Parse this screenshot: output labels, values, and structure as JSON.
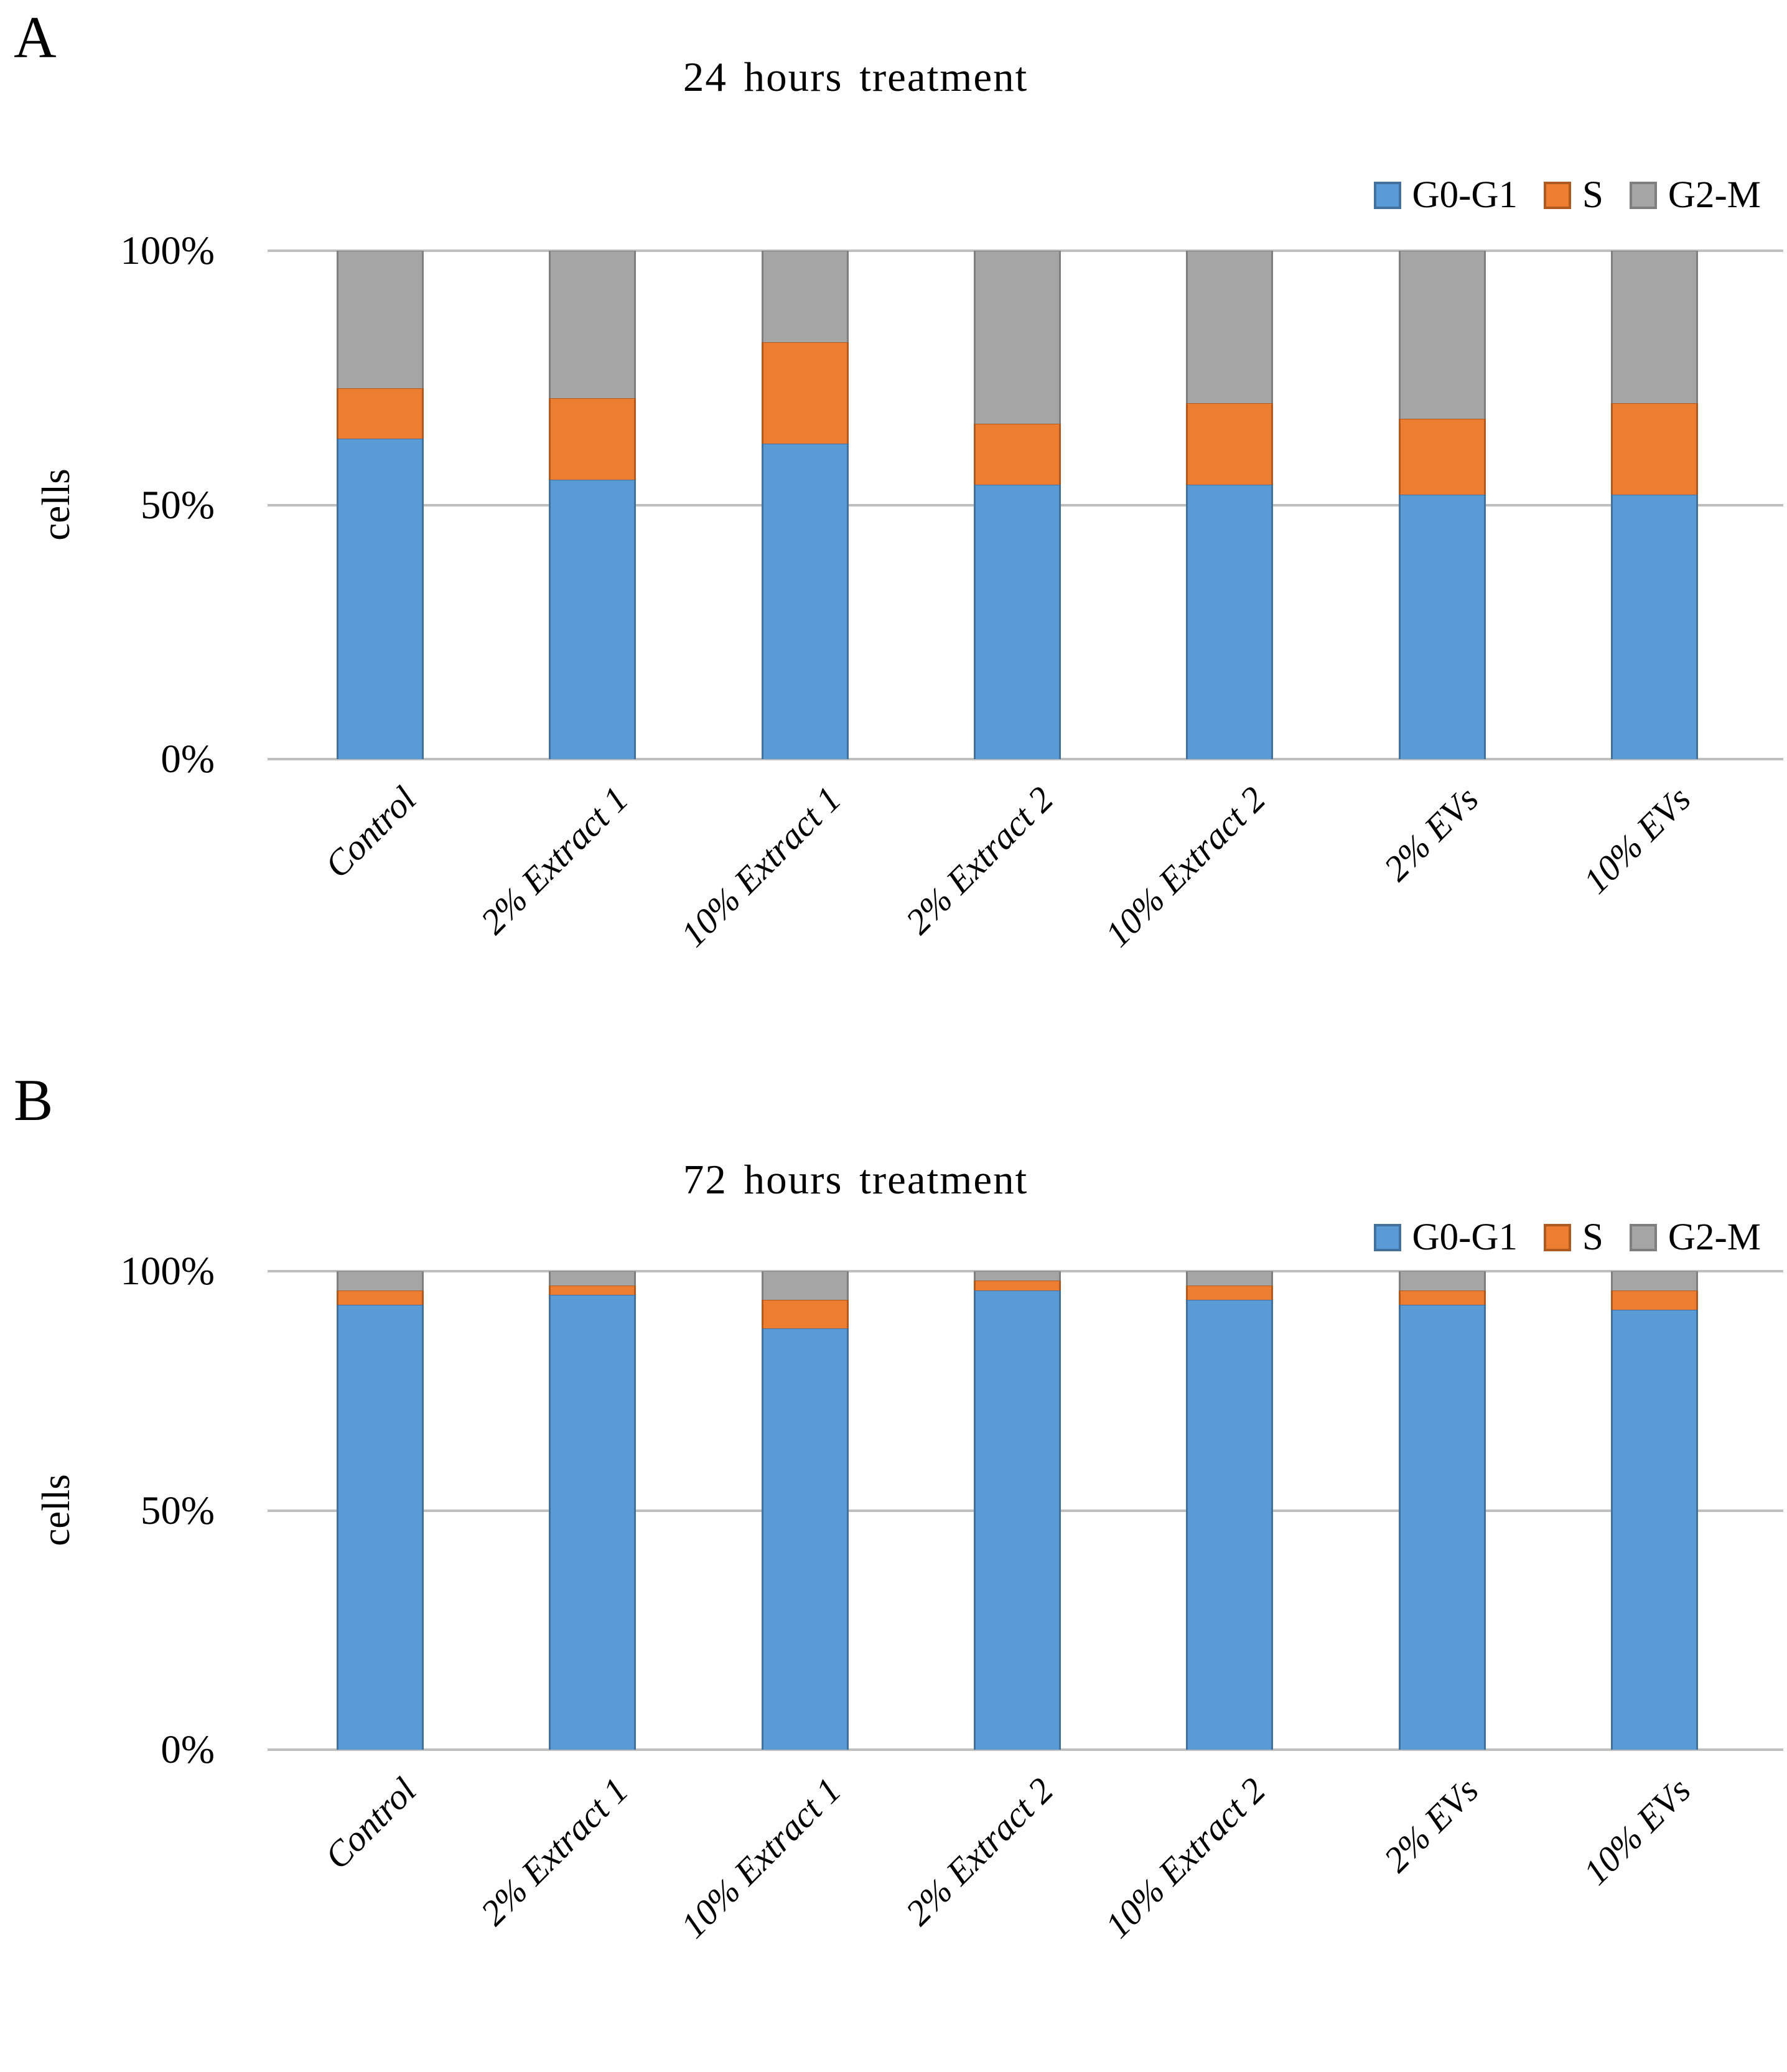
{
  "figure": {
    "background": "#ffffff",
    "text_color": "#000000",
    "gridline_color": "#BFBFBF"
  },
  "chart_data": [
    {
      "type": "bar",
      "stacked": true,
      "units": "percent",
      "panel_letter": "A",
      "title": "24 hours treatment",
      "ylabel": "cells",
      "xlabel": "",
      "ylim": [
        0,
        100
      ],
      "ytick_values": [
        0,
        50,
        100
      ],
      "ytick_labels": [
        "0%",
        "50%",
        "100%"
      ],
      "grid": true,
      "legend_position": "top-right",
      "legend_entries": [
        "G0-G1",
        "S",
        "G2-M"
      ],
      "categories": [
        "Control",
        "2% Extract 1",
        "10% Extract 1",
        "2% Extract 2",
        "10% Extract 2",
        "2% EVs",
        "10% EVs"
      ],
      "series": [
        {
          "name": "G0-G1",
          "color": "#5B9BD5",
          "border_color": "#41719C",
          "values": [
            63,
            55,
            62,
            54,
            54,
            52,
            52
          ]
        },
        {
          "name": "S",
          "color": "#ED7D31",
          "border_color": "#AE5A21",
          "values": [
            10,
            16,
            20,
            12,
            16,
            15,
            18
          ]
        },
        {
          "name": "G2-M",
          "color": "#A5A5A5",
          "border_color": "#7F7F7F",
          "values": [
            27,
            29,
            18,
            34,
            30,
            33,
            30
          ]
        }
      ]
    },
    {
      "type": "bar",
      "stacked": true,
      "units": "percent",
      "panel_letter": "B",
      "title": "72 hours treatment",
      "ylabel": "cells",
      "xlabel": "",
      "ylim": [
        0,
        100
      ],
      "ytick_values": [
        0,
        50,
        100
      ],
      "ytick_labels": [
        "0%",
        "50%",
        "100%"
      ],
      "grid": true,
      "legend_position": "top-right",
      "legend_entries": [
        "G0-G1",
        "S",
        "G2-M"
      ],
      "categories": [
        "Control",
        "2% Extract 1",
        "10% Extract 1",
        "2% Extract 2",
        "10% Extract 2",
        "2% EVs",
        "10% EVs"
      ],
      "series": [
        {
          "name": "G0-G1",
          "color": "#5B9BD5",
          "border_color": "#41719C",
          "values": [
            93,
            95,
            88,
            96,
            94,
            93,
            92
          ]
        },
        {
          "name": "S",
          "color": "#ED7D31",
          "border_color": "#AE5A21",
          "values": [
            3,
            2,
            6,
            2,
            3,
            3,
            4
          ]
        },
        {
          "name": "G2-M",
          "color": "#A5A5A5",
          "border_color": "#7F7F7F",
          "values": [
            4,
            3,
            6,
            2,
            3,
            4,
            4
          ]
        }
      ]
    }
  ]
}
